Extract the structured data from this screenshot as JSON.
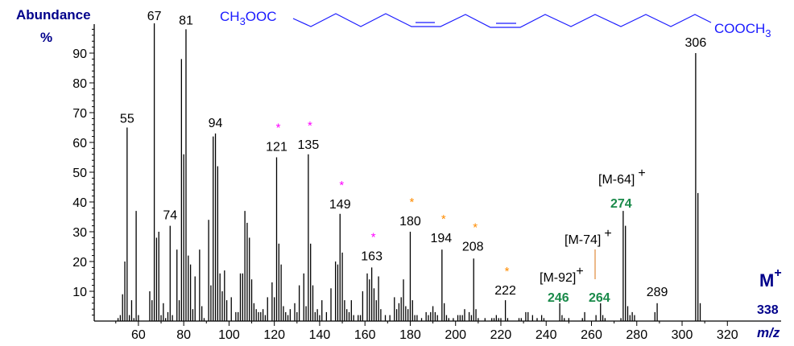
{
  "chart_data": {
    "type": "bar",
    "subtype": "mass-spectrum-stick",
    "title": "",
    "xlabel": "m/z",
    "ylabel": "Abundance",
    "ylabel_unit": "%",
    "xlim": [
      40,
      330
    ],
    "ylim": [
      0,
      100
    ],
    "xticks": [
      60,
      80,
      100,
      120,
      140,
      160,
      180,
      200,
      220,
      240,
      260,
      280,
      300,
      320
    ],
    "yticks": [
      10,
      20,
      30,
      40,
      50,
      60,
      70,
      80,
      90
    ],
    "grid": false,
    "bar_color": "#000000",
    "structure": {
      "left": "CH3OOC",
      "left_sub": "3",
      "right": "COOCH",
      "right_sub": "3",
      "color": "#1a1aff"
    },
    "x": [
      51,
      52,
      53,
      54,
      55,
      56,
      57,
      58,
      59,
      60,
      65,
      66,
      67,
      68,
      69,
      70,
      71,
      72,
      73,
      74,
      75,
      77,
      78,
      79,
      80,
      81,
      82,
      83,
      84,
      85,
      87,
      88,
      89,
      91,
      92,
      93,
      94,
      95,
      96,
      97,
      98,
      99,
      101,
      103,
      104,
      105,
      106,
      107,
      108,
      109,
      110,
      111,
      112,
      113,
      114,
      115,
      116,
      117,
      119,
      120,
      121,
      122,
      123,
      124,
      125,
      126,
      127,
      129,
      130,
      131,
      133,
      134,
      135,
      136,
      137,
      138,
      139,
      140,
      141,
      143,
      145,
      147,
      148,
      149,
      150,
      151,
      152,
      153,
      154,
      155,
      157,
      158,
      159,
      161,
      162,
      163,
      164,
      165,
      166,
      167,
      169,
      171,
      173,
      174,
      175,
      176,
      177,
      178,
      179,
      180,
      181,
      182,
      183,
      185,
      187,
      188,
      189,
      190,
      191,
      192,
      194,
      195,
      196,
      197,
      199,
      201,
      202,
      203,
      204,
      206,
      207,
      208,
      209,
      210,
      213,
      216,
      217,
      218,
      219,
      220,
      222,
      223,
      228,
      229,
      231,
      232,
      234,
      236,
      238,
      239,
      246,
      247,
      248,
      250,
      256,
      257,
      262,
      264,
      265,
      266,
      273,
      274,
      275,
      276,
      277,
      278,
      279,
      288,
      289,
      306,
      307,
      308
    ],
    "y": [
      1,
      2,
      9,
      20,
      65,
      2,
      7,
      1,
      37,
      2,
      10,
      7,
      100,
      28,
      30,
      2,
      6,
      1,
      3,
      32,
      2,
      24,
      7,
      88,
      56,
      98,
      22,
      19,
      4,
      15,
      24,
      5,
      1,
      34,
      12,
      62,
      63,
      52,
      16,
      10,
      17,
      7,
      8,
      3,
      3,
      16,
      16,
      37,
      33,
      28,
      14,
      6,
      4,
      3,
      3,
      4,
      2,
      8,
      13,
      8,
      55,
      26,
      19,
      5,
      3,
      2,
      4,
      6,
      3,
      12,
      16,
      5,
      56,
      26,
      12,
      3,
      4,
      2,
      7,
      3,
      11,
      20,
      19,
      36,
      23,
      7,
      4,
      3,
      7,
      2,
      2,
      2,
      10,
      16,
      14,
      18,
      11,
      7,
      15,
      4,
      2,
      2,
      8,
      4,
      6,
      8,
      14,
      5,
      4,
      30,
      7,
      2,
      2,
      1,
      3,
      2,
      3,
      5,
      3,
      2,
      24,
      6,
      2,
      1,
      1,
      2,
      2,
      2,
      4,
      3,
      2,
      21,
      4,
      1,
      1,
      1,
      1,
      2,
      1,
      1,
      7,
      1,
      1,
      1,
      3,
      3,
      2,
      1,
      2,
      1,
      6,
      2,
      1,
      1,
      1,
      3,
      2,
      6,
      2,
      1,
      1,
      37,
      32,
      5,
      2,
      3,
      2,
      3,
      6,
      90,
      43,
      6
    ],
    "peak_labels": [
      "55",
      "67",
      "74",
      "81",
      "94",
      "121",
      "135",
      "149",
      "163",
      "180",
      "194",
      "208",
      "222",
      "289",
      "306"
    ],
    "star_markers": {
      "magenta": [
        "121",
        "135",
        "149",
        "163"
      ],
      "orange": [
        "180",
        "194",
        "208",
        "222"
      ],
      "magenta_color": "#ff00ff",
      "orange_color": "#ff8c00"
    },
    "annotations": {
      "m92": {
        "text": "[M-92]",
        "sup": "+",
        "value": "246"
      },
      "m74": {
        "text": "[M-74]",
        "sup": "+",
        "value": "264"
      },
      "m64": {
        "text": "[M-64]",
        "sup": "+",
        "value": "274"
      },
      "molecular_ion": {
        "text": "M",
        "sup": "+",
        "value": "338"
      },
      "value_color": "#1a8a4a"
    }
  }
}
